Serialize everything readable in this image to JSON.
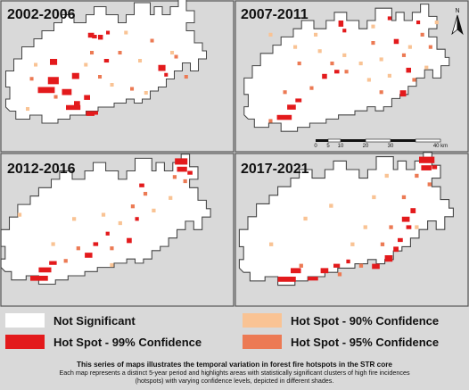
{
  "panels": [
    {
      "title": "2002-2006",
      "spots": [
        [
          "r",
          -38,
          6,
          14,
          5
        ],
        [
          "r",
          -33,
          1,
          9,
          6
        ],
        [
          "r",
          -32,
          -8,
          6,
          5
        ],
        [
          "r",
          -26,
          7,
          8,
          5
        ],
        [
          "r",
          -24,
          15,
          12,
          4
        ],
        [
          "r",
          -21,
          -1,
          6,
          5
        ],
        [
          "r",
          -20,
          13,
          5,
          5
        ],
        [
          "r",
          -14,
          18,
          7,
          4
        ],
        [
          "r",
          -15,
          10,
          5,
          4
        ],
        [
          "r",
          -11,
          18,
          5,
          3
        ],
        [
          "r",
          -13,
          -21,
          5,
          4
        ],
        [
          "r",
          -11,
          -20,
          4,
          3
        ],
        [
          "r",
          -8,
          -20,
          4,
          4
        ],
        [
          "r",
          -4,
          -22,
          3,
          3
        ],
        [
          "r",
          22,
          -5,
          6,
          5
        ],
        [
          "r",
          25,
          -1,
          3,
          3
        ],
        [
          "r",
          -5,
          -8,
          4,
          3
        ],
        [
          "o",
          -42,
          1,
          3,
          3
        ],
        [
          "o",
          -30,
          10,
          3,
          3
        ],
        [
          "o",
          -8,
          0,
          3,
          3
        ],
        [
          "o",
          -12,
          -12,
          3,
          3
        ],
        [
          "o",
          2,
          -12,
          3,
          3
        ],
        [
          "o",
          8,
          6,
          3,
          3
        ],
        [
          "o",
          18,
          -18,
          3,
          3
        ],
        [
          "o",
          30,
          -10,
          3,
          3
        ],
        [
          "o",
          35,
          0,
          3,
          3
        ],
        [
          "p",
          -44,
          16,
          3,
          3
        ],
        [
          "p",
          -40,
          -6,
          3,
          3
        ],
        [
          "p",
          -2,
          4,
          3,
          3
        ],
        [
          "p",
          5,
          -22,
          3,
          3
        ],
        [
          "p",
          15,
          8,
          3,
          3
        ],
        [
          "p",
          28,
          -12,
          3,
          3
        ],
        [
          "p",
          -15,
          -6,
          3,
          3
        ],
        [
          "p",
          12,
          -8,
          3,
          3
        ]
      ]
    },
    {
      "title": "2007-2011",
      "spots": [
        [
          "r",
          -38,
          16,
          12,
          4
        ],
        [
          "r",
          -33,
          11,
          7,
          4
        ],
        [
          "r",
          -29,
          8,
          5,
          3
        ],
        [
          "r",
          -16,
          -4,
          4,
          4
        ],
        [
          "r",
          -10,
          -6,
          4,
          3
        ],
        [
          "r",
          -8,
          -30,
          4,
          5
        ],
        [
          "r",
          -6,
          -26,
          3,
          3
        ],
        [
          "r",
          16,
          -32,
          3,
          3
        ],
        [
          "r",
          19,
          -21,
          4,
          4
        ],
        [
          "r",
          22,
          4,
          5,
          5
        ],
        [
          "r",
          25,
          -7,
          4,
          4
        ],
        [
          "r",
          30,
          -30,
          3,
          3
        ],
        [
          "o",
          -42,
          18,
          3,
          3
        ],
        [
          "o",
          -35,
          4,
          3,
          3
        ],
        [
          "o",
          -28,
          -10,
          3,
          3
        ],
        [
          "o",
          -22,
          2,
          3,
          3
        ],
        [
          "o",
          -12,
          -10,
          3,
          3
        ],
        [
          "o",
          -5,
          -6,
          3,
          3
        ],
        [
          "o",
          8,
          -20,
          3,
          3
        ],
        [
          "o",
          12,
          4,
          3,
          3
        ],
        [
          "o",
          23,
          -14,
          3,
          3
        ],
        [
          "o",
          28,
          -2,
          3,
          3
        ],
        [
          "o",
          32,
          -24,
          3,
          3
        ],
        [
          "o",
          36,
          -18,
          3,
          3
        ],
        [
          "p",
          -42,
          -24,
          3,
          3
        ],
        [
          "p",
          -30,
          -18,
          3,
          3
        ],
        [
          "p",
          -18,
          -16,
          3,
          3
        ],
        [
          "p",
          -6,
          -14,
          3,
          3
        ],
        [
          "p",
          2,
          -10,
          3,
          3
        ],
        [
          "p",
          6,
          -2,
          3,
          3
        ],
        [
          "p",
          12,
          -12,
          3,
          3
        ],
        [
          "p",
          16,
          -4,
          3,
          3
        ],
        [
          "p",
          26,
          -18,
          3,
          3
        ],
        [
          "p",
          34,
          -8,
          3,
          3
        ],
        [
          "p",
          39,
          -30,
          3,
          3
        ],
        [
          "p",
          8,
          -28,
          3,
          3
        ],
        [
          "p",
          -20,
          -24,
          3,
          3
        ]
      ]
    },
    {
      "title": "2012-2016",
      "spots": [
        [
          "r",
          -40,
          20,
          14,
          4
        ],
        [
          "r",
          -36,
          16,
          10,
          4
        ],
        [
          "r",
          -31,
          13,
          6,
          3
        ],
        [
          "r",
          -14,
          9,
          6,
          4
        ],
        [
          "r",
          -10,
          4,
          4,
          3
        ],
        [
          "r",
          -4,
          -1,
          3,
          3
        ],
        [
          "r",
          6,
          2,
          4,
          4
        ],
        [
          "r",
          12,
          -24,
          4,
          3
        ],
        [
          "r",
          29,
          -36,
          10,
          5
        ],
        [
          "r",
          30,
          -32,
          8,
          4
        ],
        [
          "r",
          35,
          -30,
          4,
          3
        ],
        [
          "r",
          10,
          -8,
          3,
          3
        ],
        [
          "o",
          -24,
          12,
          3,
          3
        ],
        [
          "o",
          -18,
          6,
          3,
          3
        ],
        [
          "o",
          -2,
          6,
          3,
          3
        ],
        [
          "o",
          8,
          -14,
          3,
          3
        ],
        [
          "o",
          14,
          -20,
          3,
          3
        ],
        [
          "o",
          28,
          -28,
          3,
          3
        ],
        [
          "o",
          33,
          -26,
          3,
          3
        ],
        [
          "p",
          -46,
          -10,
          3,
          3
        ],
        [
          "p",
          -30,
          4,
          3,
          3
        ],
        [
          "p",
          -20,
          -8,
          3,
          3
        ],
        [
          "p",
          -6,
          -10,
          3,
          3
        ],
        [
          "p",
          2,
          -6,
          3,
          3
        ],
        [
          "p",
          18,
          -12,
          3,
          3
        ],
        [
          "p",
          26,
          -18,
          3,
          3
        ],
        [
          "p",
          -2,
          14,
          3,
          3
        ]
      ]
    },
    {
      "title": "2017-2021",
      "spots": [
        [
          "r",
          -36,
          20,
          14,
          4
        ],
        [
          "r",
          -30,
          16,
          8,
          4
        ],
        [
          "r",
          -22,
          20,
          8,
          3
        ],
        [
          "r",
          -16,
          16,
          6,
          4
        ],
        [
          "r",
          -10,
          14,
          5,
          3
        ],
        [
          "r",
          -4,
          12,
          3,
          3
        ],
        [
          "r",
          8,
          14,
          6,
          4
        ],
        [
          "r",
          14,
          10,
          6,
          5
        ],
        [
          "r",
          18,
          6,
          4,
          4
        ],
        [
          "r",
          20,
          2,
          4,
          3
        ],
        [
          "r",
          22,
          -8,
          6,
          4
        ],
        [
          "r",
          24,
          -4,
          4,
          3
        ],
        [
          "r",
          26,
          -12,
          4,
          4
        ],
        [
          "r",
          30,
          -36,
          12,
          5
        ],
        [
          "r",
          31,
          -32,
          8,
          4
        ],
        [
          "r",
          36,
          -32,
          4,
          3
        ],
        [
          "o",
          -26,
          14,
          3,
          3
        ],
        [
          "o",
          -8,
          18,
          3,
          3
        ],
        [
          "o",
          2,
          14,
          3,
          3
        ],
        [
          "o",
          12,
          4,
          3,
          3
        ],
        [
          "o",
          16,
          -4,
          3,
          3
        ],
        [
          "o",
          22,
          -18,
          3,
          3
        ],
        [
          "o",
          28,
          -28,
          3,
          3
        ],
        [
          "o",
          34,
          -24,
          3,
          3
        ],
        [
          "p",
          -40,
          4,
          3,
          3
        ],
        [
          "p",
          -24,
          -8,
          3,
          3
        ],
        [
          "p",
          -12,
          -14,
          3,
          3
        ],
        [
          "p",
          4,
          -4,
          3,
          3
        ],
        [
          "p",
          8,
          -18,
          3,
          3
        ],
        [
          "p",
          28,
          -4,
          3,
          3
        ],
        [
          "p",
          14,
          -28,
          3,
          3
        ],
        [
          "p",
          -2,
          4,
          3,
          3
        ]
      ]
    }
  ],
  "north_label": "N",
  "scale_bar": {
    "ticks": [
      "0",
      "5",
      "10",
      "20",
      "30",
      "40 km"
    ]
  },
  "colors": {
    "background": "#d9d9d9",
    "not_significant": "#ffffff",
    "hot_90": "#f9c394",
    "hot_95": "#ec7a54",
    "hot_99": "#e31a1c",
    "outline": "#444444",
    "frame": "#555555"
  },
  "legend": {
    "not_significant": "Not Significant",
    "hot_99": "Hot Spot - 99% Confidence",
    "hot_90": "Hot Spot - 90% Confidence",
    "hot_95": "Hot Spot - 95% Confidence"
  },
  "caption": {
    "title": "This series of maps illustrates the temporal variation in forest fire hotspots in the STR core",
    "body": "Each map represents a distinct 5-year period and highlights areas with statistically significant clusters of high fire incidences (hotspots) with varying confidence levels, depicted in different shades."
  }
}
